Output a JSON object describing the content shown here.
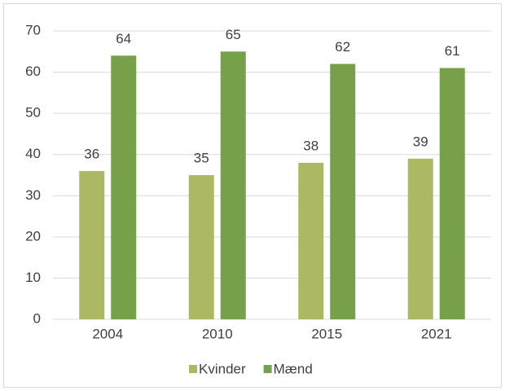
{
  "chart_data": {
    "type": "bar",
    "categories": [
      "2004",
      "2010",
      "2015",
      "2021"
    ],
    "series": [
      {
        "name": "Kvinder",
        "color": "#adb962",
        "values": [
          36,
          35,
          38,
          39
        ]
      },
      {
        "name": "Mænd",
        "color": "#77a04b",
        "values": [
          64,
          65,
          62,
          61
        ]
      }
    ],
    "ylim": [
      0,
      70
    ],
    "yticks": [
      0,
      10,
      20,
      30,
      40,
      50,
      60,
      70
    ],
    "grid": true,
    "legend": "bottom"
  }
}
